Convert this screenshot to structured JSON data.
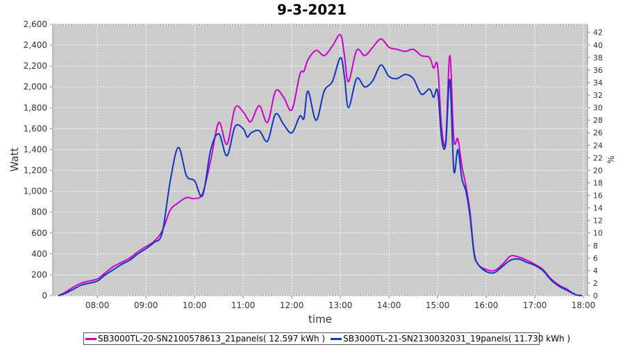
{
  "chart_data": {
    "type": "line",
    "title": "9-3-2021",
    "xlabel": "time",
    "ylabel": "Watt",
    "y2label": "%",
    "xlim": [
      "07:05",
      "18:05"
    ],
    "ylim": [
      0,
      2600
    ],
    "y2lim": [
      0,
      43.3
    ],
    "x_ticks": [
      "08:00",
      "09:00",
      "10:00",
      "11:00",
      "12:00",
      "13:00",
      "14:00",
      "15:00",
      "16:00",
      "17:00",
      "18:00"
    ],
    "y_ticks": [
      "0",
      "200",
      "400",
      "600",
      "800",
      "1,000",
      "1,200",
      "1,400",
      "1,600",
      "1,800",
      "2,000",
      "2,200",
      "2,400",
      "2,600"
    ],
    "y2_ticks": [
      "0",
      "2",
      "4",
      "6",
      "8",
      "10",
      "12",
      "14",
      "16",
      "18",
      "20",
      "22",
      "24",
      "26",
      "28",
      "30",
      "32",
      "34",
      "36",
      "38",
      "40",
      "42"
    ],
    "grid": true,
    "legend_position": "bottom",
    "series": [
      {
        "name": "SB3000TL-20-SN2100578613_21panels( 12.597 kWh )",
        "color": "#cc00cc",
        "x": [
          "07:12",
          "07:20",
          "07:30",
          "07:40",
          "07:50",
          "08:00",
          "08:10",
          "08:20",
          "08:30",
          "08:40",
          "08:50",
          "09:00",
          "09:10",
          "09:20",
          "09:30",
          "09:40",
          "09:50",
          "10:00",
          "10:10",
          "10:20",
          "10:30",
          "10:40",
          "10:50",
          "11:00",
          "11:05",
          "11:10",
          "11:20",
          "11:30",
          "11:40",
          "11:50",
          "12:00",
          "12:10",
          "12:15",
          "12:20",
          "12:30",
          "12:40",
          "12:50",
          "13:00",
          "13:05",
          "13:10",
          "13:20",
          "13:30",
          "13:40",
          "13:50",
          "14:00",
          "14:10",
          "14:20",
          "14:30",
          "14:40",
          "14:50",
          "14:55",
          "15:00",
          "15:05",
          "15:10",
          "15:15",
          "15:20",
          "15:25",
          "15:30",
          "15:35",
          "15:40",
          "15:45",
          "15:50",
          "16:00",
          "16:10",
          "16:20",
          "16:30",
          "16:40",
          "16:50",
          "17:00",
          "17:10",
          "17:20",
          "17:30",
          "17:40",
          "17:50",
          "17:58"
        ],
        "y": [
          0,
          30,
          80,
          120,
          140,
          160,
          220,
          280,
          320,
          360,
          420,
          470,
          520,
          620,
          820,
          890,
          940,
          930,
          980,
          1300,
          1660,
          1450,
          1800,
          1760,
          1700,
          1670,
          1820,
          1660,
          1960,
          1900,
          1780,
          2120,
          2150,
          2260,
          2350,
          2300,
          2390,
          2500,
          2300,
          2050,
          2350,
          2300,
          2380,
          2460,
          2380,
          2360,
          2340,
          2360,
          2300,
          2280,
          2180,
          2200,
          1600,
          1480,
          2300,
          1500,
          1500,
          1240,
          1050,
          800,
          420,
          300,
          250,
          240,
          300,
          380,
          370,
          340,
          300,
          250,
          160,
          100,
          60,
          10,
          0
        ]
      },
      {
        "name": "SB3000TL-21-SN2130032031_19panels( 11.730 kWh )",
        "color": "#1035c0",
        "x": [
          "07:12",
          "07:20",
          "07:30",
          "07:40",
          "07:50",
          "08:00",
          "08:10",
          "08:20",
          "08:30",
          "08:40",
          "08:50",
          "09:00",
          "09:10",
          "09:20",
          "09:30",
          "09:40",
          "09:50",
          "10:00",
          "10:10",
          "10:20",
          "10:30",
          "10:40",
          "10:50",
          "11:00",
          "11:05",
          "11:10",
          "11:20",
          "11:30",
          "11:40",
          "11:50",
          "12:00",
          "12:10",
          "12:15",
          "12:20",
          "12:30",
          "12:40",
          "12:50",
          "13:00",
          "13:05",
          "13:10",
          "13:20",
          "13:30",
          "13:40",
          "13:50",
          "14:00",
          "14:10",
          "14:20",
          "14:30",
          "14:40",
          "14:50",
          "14:55",
          "15:00",
          "15:05",
          "15:10",
          "15:15",
          "15:20",
          "15:25",
          "15:30",
          "15:35",
          "15:40",
          "15:45",
          "15:50",
          "16:00",
          "16:10",
          "16:20",
          "16:30",
          "16:40",
          "16:50",
          "17:00",
          "17:10",
          "17:20",
          "17:30",
          "17:40",
          "17:50",
          "17:58"
        ],
        "y": [
          0,
          20,
          60,
          100,
          120,
          140,
          200,
          250,
          300,
          340,
          400,
          450,
          510,
          600,
          1100,
          1420,
          1150,
          1100,
          960,
          1400,
          1550,
          1340,
          1620,
          1600,
          1520,
          1560,
          1580,
          1480,
          1740,
          1640,
          1560,
          1720,
          1700,
          1960,
          1680,
          1960,
          2050,
          2280,
          2100,
          1800,
          2080,
          2000,
          2060,
          2210,
          2100,
          2080,
          2120,
          2080,
          1930,
          1980,
          1900,
          1960,
          1500,
          1450,
          2070,
          1200,
          1400,
          1120,
          1000,
          760,
          400,
          300,
          230,
          220,
          280,
          340,
          350,
          320,
          290,
          240,
          150,
          90,
          50,
          10,
          0
        ]
      }
    ]
  }
}
